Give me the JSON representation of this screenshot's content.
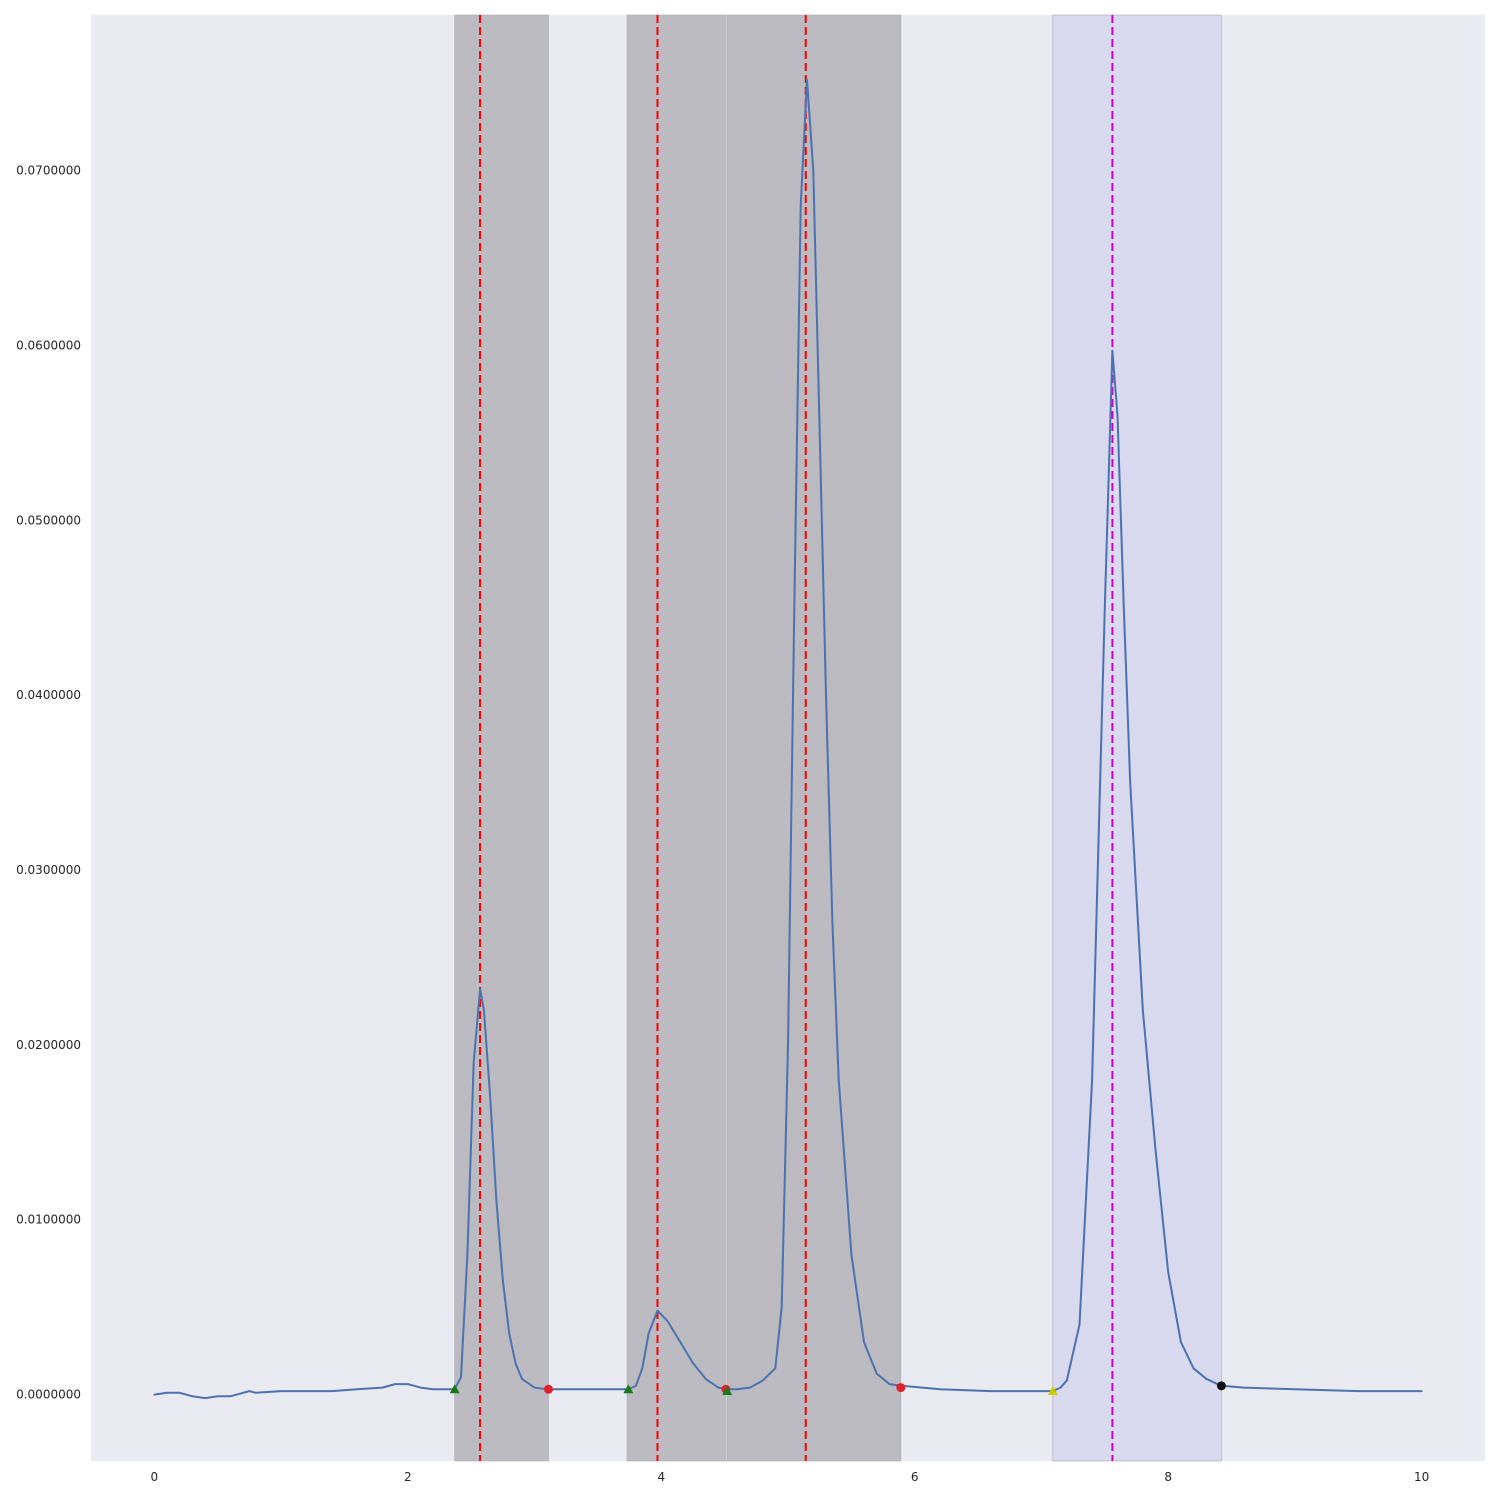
{
  "chart_data": {
    "type": "line",
    "title": "",
    "xlabel": "",
    "ylabel": "",
    "xlim": [
      -0.5,
      10.5
    ],
    "ylim": [
      -0.0038,
      0.0789
    ],
    "grid": false,
    "background_color": "#eaeaf2",
    "x_ticks": [
      0,
      2,
      4,
      6,
      8,
      10
    ],
    "x_tick_labels": [
      "0",
      "2",
      "4",
      "6",
      "8",
      "10"
    ],
    "y_ticks": [
      0.0,
      0.01,
      0.02,
      0.03,
      0.04,
      0.05,
      0.06,
      0.07
    ],
    "y_tick_labels": [
      "0.0000000",
      "0.0100000",
      "0.0200000",
      "0.0300000",
      "0.0400000",
      "0.0500000",
      "0.0600000",
      "0.0700000"
    ],
    "series": [
      {
        "color": "#4c72b0",
        "x": [
          0.0,
          0.1,
          0.2,
          0.3,
          0.4,
          0.5,
          0.6,
          0.7,
          0.75,
          0.8,
          1.0,
          1.2,
          1.4,
          1.6,
          1.8,
          1.9,
          2.0,
          2.05,
          2.1,
          2.2,
          2.3,
          2.37,
          2.42,
          2.47,
          2.52,
          2.57,
          2.6,
          2.65,
          2.7,
          2.75,
          2.8,
          2.85,
          2.9,
          3.0,
          3.1,
          3.3,
          3.5,
          3.7,
          3.74,
          3.8,
          3.85,
          3.9,
          3.97,
          4.05,
          4.15,
          4.25,
          4.35,
          4.45,
          4.52,
          4.6,
          4.7,
          4.8,
          4.9,
          4.95,
          5.0,
          5.05,
          5.1,
          5.15,
          5.2,
          5.25,
          5.3,
          5.35,
          5.4,
          5.5,
          5.6,
          5.7,
          5.8,
          5.9,
          6.2,
          6.6,
          7.0,
          7.09,
          7.15,
          7.2,
          7.3,
          7.4,
          7.5,
          7.56,
          7.6,
          7.65,
          7.7,
          7.8,
          7.9,
          8.0,
          8.1,
          8.2,
          8.3,
          8.42,
          8.6,
          9.0,
          9.5,
          10.0
        ],
        "y": [
          0.0,
          0.0001,
          0.0001,
          -0.0001,
          -0.0002,
          -0.0001,
          -0.0001,
          0.0001,
          0.0002,
          0.0001,
          0.0002,
          0.0002,
          0.0002,
          0.0003,
          0.0004,
          0.0006,
          0.0006,
          0.0005,
          0.0004,
          0.0003,
          0.0003,
          0.0003,
          0.001,
          0.008,
          0.019,
          0.0232,
          0.022,
          0.017,
          0.011,
          0.0065,
          0.0035,
          0.0018,
          0.0009,
          0.0004,
          0.0003,
          0.0003,
          0.0003,
          0.0003,
          0.0003,
          0.0005,
          0.0015,
          0.0035,
          0.0048,
          0.0042,
          0.003,
          0.0018,
          0.0009,
          0.0004,
          0.0003,
          0.0003,
          0.0004,
          0.0008,
          0.0015,
          0.005,
          0.02,
          0.045,
          0.068,
          0.0752,
          0.07,
          0.055,
          0.04,
          0.027,
          0.018,
          0.008,
          0.003,
          0.0012,
          0.0006,
          0.0005,
          0.0003,
          0.0002,
          0.0002,
          0.0002,
          0.0004,
          0.0008,
          0.004,
          0.018,
          0.045,
          0.0597,
          0.056,
          0.045,
          0.035,
          0.022,
          0.014,
          0.007,
          0.003,
          0.0015,
          0.0009,
          0.0005,
          0.0004,
          0.0003,
          0.0002,
          0.0002
        ]
      }
    ],
    "shaded_regions": [
      {
        "x0": 2.37,
        "x1": 3.11,
        "color": "#bbbbc1"
      },
      {
        "x0": 3.73,
        "x1": 4.51,
        "color": "#bbbbc1"
      },
      {
        "x0": 4.52,
        "x1": 5.89,
        "color": "#bbbbc1"
      },
      {
        "x0": 7.09,
        "x1": 8.42,
        "color": "#d9d9f0"
      }
    ],
    "vertical_lines": [
      {
        "x": 2.57,
        "color": "#ff0000",
        "style": "dashed"
      },
      {
        "x": 3.97,
        "color": "#ff0000",
        "style": "dashed"
      },
      {
        "x": 5.14,
        "color": "#ff0000",
        "style": "dashed"
      },
      {
        "x": 7.56,
        "color": "#cc00cc",
        "style": "dashed"
      }
    ],
    "markers": [
      {
        "x": 2.37,
        "y": 0.0003,
        "shape": "triangle",
        "color": "#1a7a1a"
      },
      {
        "x": 3.11,
        "y": 0.0003,
        "shape": "circle",
        "color": "#e0202a"
      },
      {
        "x": 3.74,
        "y": 0.0003,
        "shape": "triangle",
        "color": "#1a7a1a"
      },
      {
        "x": 4.51,
        "y": 0.0003,
        "shape": "circle",
        "color": "#e0202a"
      },
      {
        "x": 4.52,
        "y": 0.0002,
        "shape": "triangle",
        "color": "#1a7a1a"
      },
      {
        "x": 5.89,
        "y": 0.0004,
        "shape": "circle",
        "color": "#e0202a"
      },
      {
        "x": 7.09,
        "y": 0.0002,
        "shape": "triangle",
        "color": "#cccc00"
      },
      {
        "x": 8.42,
        "y": 0.0005,
        "shape": "circle",
        "color": "#111111"
      }
    ]
  }
}
